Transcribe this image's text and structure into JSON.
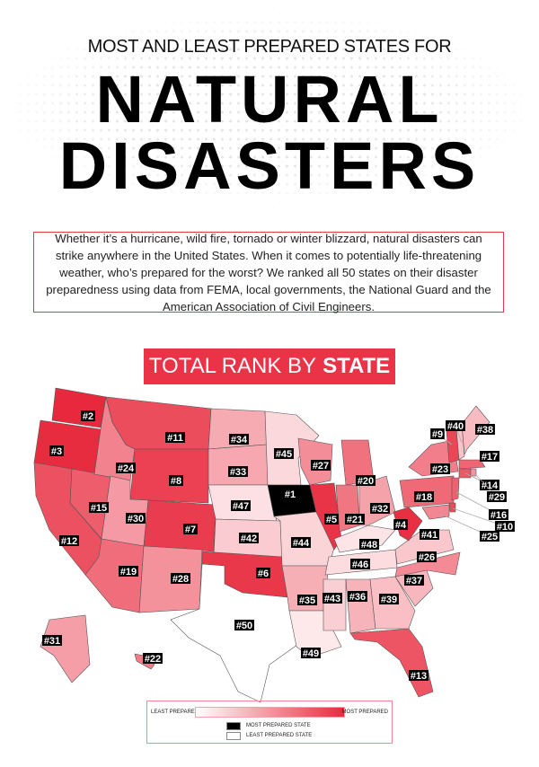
{
  "header": {
    "subtitle": "MOST AND LEAST PREPARED STATES FOR",
    "title_line1": "NATURAL",
    "title_line2": "DISASTERS"
  },
  "intro": "Whether it’s a hurricane, wild fire, tornado or winter blizzard, natural disasters can strike anywhere in the United States. When it comes to potentially life-threatening weather, who’s prepared for the worst? We ranked all 50 states on their disaster preparedness using data from FEMA, local governments, the National Guard and the American Association of Civil Engineers.",
  "banner": {
    "prefix": "TOTAL RANK BY",
    "bold": "STATE"
  },
  "colors": {
    "accent": "#ea3346",
    "most": "#e8283c",
    "least": "#fde8ea",
    "rank1": "#000000",
    "rank50": "#ffffff"
  },
  "map": {
    "states": [
      {
        "rank": 2,
        "label": "#2"
      },
      {
        "rank": 3,
        "label": "#3"
      },
      {
        "rank": 12,
        "label": "#12"
      },
      {
        "rank": 15,
        "label": "#15"
      },
      {
        "rank": 24,
        "label": "#24"
      },
      {
        "rank": 11,
        "label": "#11"
      },
      {
        "rank": 8,
        "label": "#8"
      },
      {
        "rank": 30,
        "label": "#30"
      },
      {
        "rank": 7,
        "label": "#7"
      },
      {
        "rank": 19,
        "label": "#19"
      },
      {
        "rank": 28,
        "label": "#28"
      },
      {
        "rank": 34,
        "label": "#34"
      },
      {
        "rank": 33,
        "label": "#33"
      },
      {
        "rank": 47,
        "label": "#47"
      },
      {
        "rank": 42,
        "label": "#42"
      },
      {
        "rank": 6,
        "label": "#6"
      },
      {
        "rank": 50,
        "label": "#50"
      },
      {
        "rank": 45,
        "label": "#45"
      },
      {
        "rank": 1,
        "label": "#1"
      },
      {
        "rank": 44,
        "label": "#44"
      },
      {
        "rank": 35,
        "label": "#35"
      },
      {
        "rank": 49,
        "label": "#49"
      },
      {
        "rank": 27,
        "label": "#27"
      },
      {
        "rank": 5,
        "label": "#5"
      },
      {
        "rank": 20,
        "label": "#20"
      },
      {
        "rank": 21,
        "label": "#21"
      },
      {
        "rank": 32,
        "label": "#32"
      },
      {
        "rank": 48,
        "label": "#48"
      },
      {
        "rank": 46,
        "label": "#46"
      },
      {
        "rank": 43,
        "label": "#43"
      },
      {
        "rank": 36,
        "label": "#36"
      },
      {
        "rank": 39,
        "label": "#39"
      },
      {
        "rank": 13,
        "label": "#13"
      },
      {
        "rank": 37,
        "label": "#37"
      },
      {
        "rank": 26,
        "label": "#26"
      },
      {
        "rank": 41,
        "label": "#41"
      },
      {
        "rank": 4,
        "label": "#4"
      },
      {
        "rank": 18,
        "label": "#18"
      },
      {
        "rank": 23,
        "label": "#23"
      },
      {
        "rank": 9,
        "label": "#9"
      },
      {
        "rank": 40,
        "label": "#40"
      },
      {
        "rank": 38,
        "label": "#38"
      },
      {
        "rank": 17,
        "label": "#17"
      },
      {
        "rank": 14,
        "label": "#14"
      },
      {
        "rank": 29,
        "label": "#29"
      },
      {
        "rank": 16,
        "label": "#16"
      },
      {
        "rank": 10,
        "label": "#10"
      },
      {
        "rank": 25,
        "label": "#25"
      },
      {
        "rank": 31,
        "label": "#31"
      },
      {
        "rank": 22,
        "label": "#22"
      }
    ]
  },
  "legend": {
    "least": "LEAST PREPARED",
    "most": "MOST PREPARED",
    "most_state": "MOST PREPARED STATE",
    "least_state": "LEAST PREPARED STATE"
  }
}
